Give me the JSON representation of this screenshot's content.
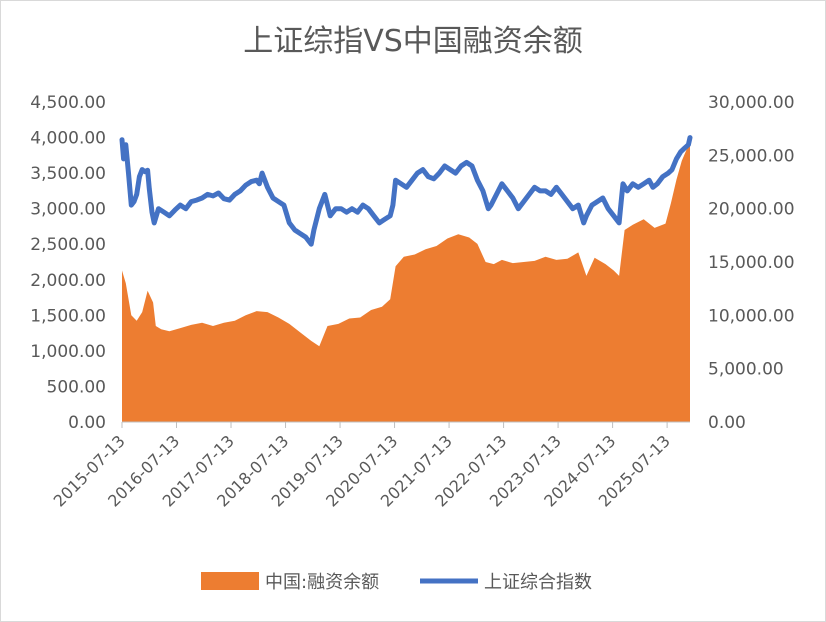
{
  "chart_data": {
    "type": "area+line",
    "title": "上证综指VS中国融资余额",
    "x_start": "2015-07-13",
    "x_end": "2025-10-31",
    "x_ticks": [
      "2015-07-13",
      "2016-07-13",
      "2017-07-13",
      "2018-07-13",
      "2019-07-13",
      "2020-07-13",
      "2021-07-13",
      "2022-07-13",
      "2023-07-13",
      "2024-07-13",
      "2025-07-13"
    ],
    "left_axis": {
      "ylim": [
        0,
        4500
      ],
      "ticks": [
        "0.00",
        "500.00",
        "1,000.00",
        "1,500.00",
        "2,000.00",
        "2,500.00",
        "3,000.00",
        "3,500.00",
        "4,000.00",
        "4,500.00"
      ],
      "tick_values": [
        0,
        500,
        1000,
        1500,
        2000,
        2500,
        3000,
        3500,
        4000,
        4500
      ]
    },
    "right_axis": {
      "ylim": [
        0,
        30000
      ],
      "ticks": [
        "0.00",
        "5,000.00",
        "10,000.00",
        "15,000.00",
        "20,000.00",
        "25,000.00",
        "30,000.00"
      ],
      "tick_values": [
        0,
        5000,
        10000,
        15000,
        20000,
        25000,
        30000
      ]
    },
    "series": [
      {
        "name": "中国:融资余额",
        "type": "area",
        "axis": "right",
        "color": "#ed7d31",
        "x": [
          2015.53,
          2015.6,
          2015.7,
          2015.8,
          2015.9,
          2016.0,
          2016.1,
          2016.15,
          2016.25,
          2016.4,
          2016.6,
          2016.8,
          2017.0,
          2017.2,
          2017.4,
          2017.6,
          2017.8,
          2018.0,
          2018.2,
          2018.4,
          2018.6,
          2018.8,
          2019.0,
          2019.15,
          2019.3,
          2019.5,
          2019.7,
          2019.9,
          2020.1,
          2020.3,
          2020.45,
          2020.55,
          2020.7,
          2020.9,
          2021.1,
          2021.3,
          2021.5,
          2021.7,
          2021.9,
          2022.05,
          2022.2,
          2022.35,
          2022.5,
          2022.7,
          2022.9,
          2023.1,
          2023.3,
          2023.5,
          2023.7,
          2023.9,
          2024.05,
          2024.2,
          2024.4,
          2024.55,
          2024.65,
          2024.75,
          2024.9,
          2025.1,
          2025.3,
          2025.5,
          2025.6,
          2025.7,
          2025.8,
          2025.9,
          2025.95
        ],
        "values": [
          14200,
          13000,
          10000,
          9500,
          10300,
          12300,
          11200,
          9000,
          8700,
          8500,
          8800,
          9100,
          9300,
          9000,
          9300,
          9500,
          10000,
          10400,
          10300,
          9800,
          9200,
          8400,
          7600,
          7100,
          9000,
          9200,
          9700,
          9800,
          10500,
          10800,
          11500,
          14600,
          15500,
          15700,
          16200,
          16500,
          17200,
          17600,
          17300,
          16700,
          15000,
          14800,
          15200,
          14900,
          15000,
          15100,
          15500,
          15200,
          15300,
          15900,
          13700,
          15400,
          14800,
          14200,
          13700,
          18000,
          18500,
          19000,
          18200,
          18600,
          20500,
          22700,
          24500,
          25700,
          26500
        ]
      },
      {
        "name": "上证综合指数",
        "type": "line",
        "axis": "left",
        "color": "#4472c4",
        "x": [
          2015.53,
          2015.56,
          2015.6,
          2015.65,
          2015.7,
          2015.75,
          2015.8,
          2015.85,
          2015.9,
          2015.95,
          2016.0,
          2016.03,
          2016.08,
          2016.12,
          2016.2,
          2016.3,
          2016.4,
          2016.5,
          2016.6,
          2016.7,
          2016.8,
          2016.9,
          2017.0,
          2017.1,
          2017.2,
          2017.3,
          2017.4,
          2017.5,
          2017.6,
          2017.7,
          2017.8,
          2017.9,
          2018.0,
          2018.05,
          2018.1,
          2018.2,
          2018.3,
          2018.4,
          2018.5,
          2018.6,
          2018.7,
          2018.8,
          2018.9,
          2019.0,
          2019.05,
          2019.15,
          2019.25,
          2019.35,
          2019.45,
          2019.55,
          2019.65,
          2019.75,
          2019.85,
          2019.95,
          2020.05,
          2020.15,
          2020.25,
          2020.35,
          2020.45,
          2020.5,
          2020.55,
          2020.65,
          2020.75,
          2020.85,
          2020.95,
          2021.05,
          2021.15,
          2021.25,
          2021.35,
          2021.45,
          2021.55,
          2021.65,
          2021.75,
          2021.85,
          2021.95,
          2022.05,
          2022.15,
          2022.25,
          2022.3,
          2022.4,
          2022.5,
          2022.6,
          2022.7,
          2022.8,
          2022.9,
          2023.0,
          2023.1,
          2023.2,
          2023.3,
          2023.4,
          2023.5,
          2023.6,
          2023.7,
          2023.8,
          2023.9,
          2024.0,
          2024.05,
          2024.15,
          2024.25,
          2024.35,
          2024.45,
          2024.55,
          2024.65,
          2024.7,
          2024.72,
          2024.76,
          2024.8,
          2024.9,
          2025.0,
          2025.1,
          2025.2,
          2025.27,
          2025.35,
          2025.45,
          2025.55,
          2025.62,
          2025.7,
          2025.78,
          2025.85,
          2025.92,
          2025.95
        ],
        "values": [
          3970,
          3700,
          3900,
          3500,
          3050,
          3100,
          3200,
          3450,
          3550,
          3520,
          3540,
          3280,
          2950,
          2800,
          3000,
          2950,
          2900,
          2980,
          3050,
          3000,
          3100,
          3120,
          3150,
          3200,
          3180,
          3220,
          3140,
          3120,
          3200,
          3250,
          3330,
          3380,
          3400,
          3350,
          3500,
          3300,
          3150,
          3100,
          3050,
          2800,
          2700,
          2650,
          2600,
          2500,
          2700,
          3000,
          3200,
          2900,
          3000,
          3000,
          2950,
          3000,
          2950,
          3050,
          3000,
          2900,
          2800,
          2850,
          2900,
          3050,
          3400,
          3350,
          3300,
          3400,
          3500,
          3550,
          3450,
          3420,
          3500,
          3600,
          3550,
          3500,
          3600,
          3650,
          3600,
          3400,
          3250,
          3000,
          3050,
          3200,
          3350,
          3250,
          3150,
          3000,
          3100,
          3200,
          3300,
          3250,
          3250,
          3200,
          3300,
          3200,
          3100,
          3000,
          3050,
          2800,
          2900,
          3050,
          3100,
          3150,
          3000,
          2900,
          2800,
          3200,
          3350,
          3300,
          3250,
          3350,
          3300,
          3350,
          3400,
          3300,
          3350,
          3450,
          3500,
          3550,
          3700,
          3800,
          3850,
          3900,
          4000
        ]
      }
    ],
    "legend": {
      "position": "bottom",
      "labels": [
        "中国:融资余额",
        "上证综合指数"
      ]
    }
  }
}
